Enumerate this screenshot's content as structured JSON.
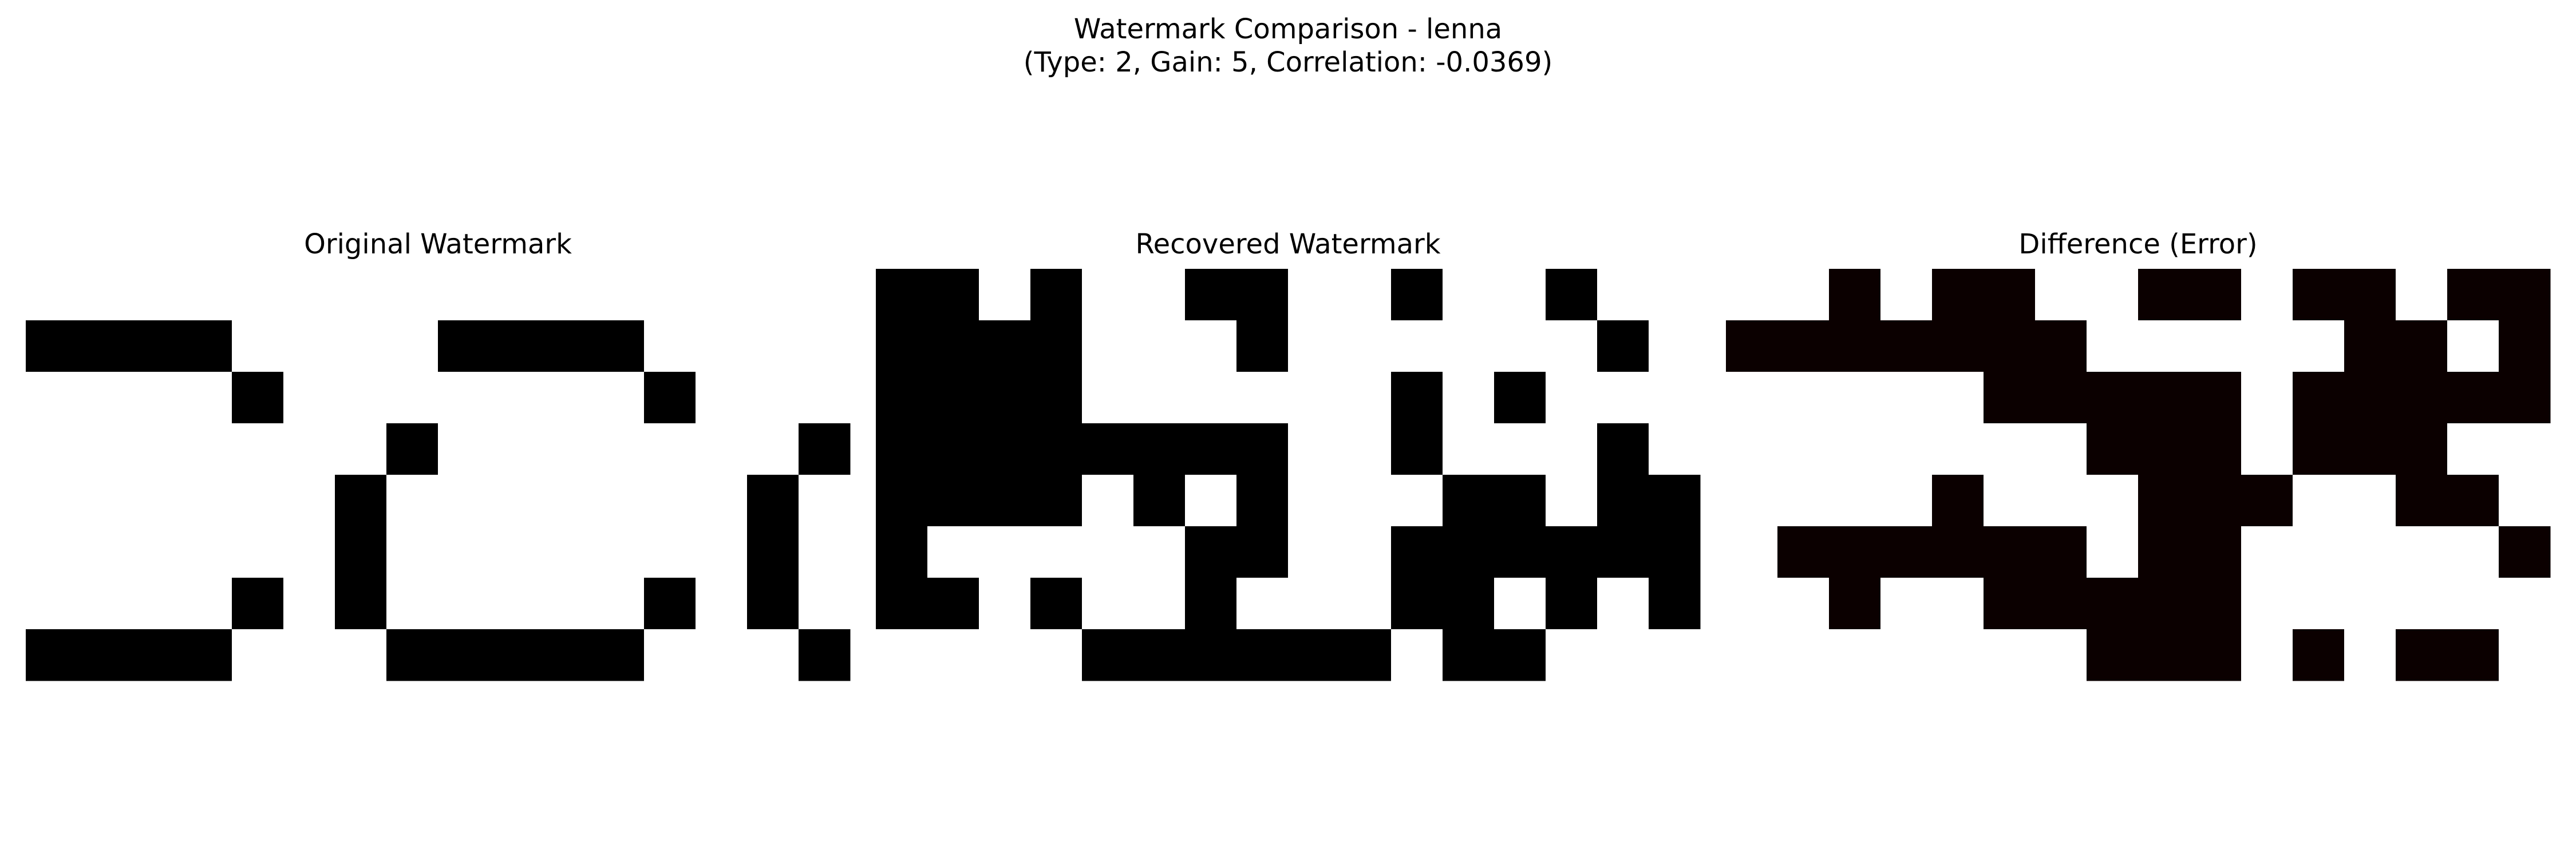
{
  "figure": {
    "title_line1": "Watermark Comparison - lenna",
    "title_line2": "(Type: 2, Gain: 5, Correlation: -0.0369)"
  },
  "chart_data": {
    "type": "heatmap",
    "grid": false,
    "panels": [
      {
        "title": "Original Watermark",
        "colormap": "gray",
        "rows": 8,
        "cols": 16,
        "values": [
          [
            0,
            0,
            0,
            0,
            0,
            0,
            0,
            0,
            0,
            0,
            0,
            0,
            0,
            0,
            0,
            0
          ],
          [
            1,
            1,
            1,
            1,
            0,
            0,
            0,
            0,
            1,
            1,
            1,
            1,
            0,
            0,
            0,
            0
          ],
          [
            0,
            0,
            0,
            0,
            1,
            0,
            0,
            0,
            0,
            0,
            0,
            0,
            1,
            0,
            0,
            0
          ],
          [
            0,
            0,
            0,
            0,
            0,
            0,
            0,
            1,
            0,
            0,
            0,
            0,
            0,
            0,
            0,
            1
          ],
          [
            0,
            0,
            0,
            0,
            0,
            0,
            1,
            0,
            0,
            0,
            0,
            0,
            0,
            0,
            1,
            0
          ],
          [
            0,
            0,
            0,
            0,
            0,
            0,
            1,
            0,
            0,
            0,
            0,
            0,
            0,
            0,
            1,
            0
          ],
          [
            0,
            0,
            0,
            0,
            1,
            0,
            1,
            0,
            0,
            0,
            0,
            0,
            1,
            0,
            1,
            0
          ],
          [
            1,
            1,
            1,
            1,
            0,
            0,
            0,
            1,
            1,
            1,
            1,
            1,
            0,
            0,
            0,
            1
          ]
        ]
      },
      {
        "title": "Recovered Watermark",
        "colormap": "gray",
        "rows": 8,
        "cols": 16,
        "values": [
          [
            1,
            1,
            0,
            1,
            0,
            0,
            1,
            1,
            0,
            0,
            1,
            0,
            0,
            1,
            0,
            0
          ],
          [
            1,
            1,
            1,
            1,
            0,
            0,
            0,
            1,
            0,
            0,
            0,
            0,
            0,
            0,
            1,
            0
          ],
          [
            1,
            1,
            1,
            1,
            0,
            0,
            0,
            0,
            0,
            0,
            1,
            0,
            1,
            0,
            0,
            0
          ],
          [
            1,
            1,
            1,
            1,
            1,
            1,
            1,
            1,
            0,
            0,
            1,
            0,
            0,
            0,
            1,
            0
          ],
          [
            1,
            1,
            1,
            1,
            0,
            1,
            0,
            1,
            0,
            0,
            0,
            1,
            1,
            0,
            1,
            1
          ],
          [
            1,
            0,
            0,
            0,
            0,
            0,
            1,
            1,
            0,
            0,
            1,
            1,
            1,
            1,
            1,
            1
          ],
          [
            1,
            1,
            0,
            1,
            0,
            0,
            1,
            0,
            0,
            0,
            1,
            1,
            0,
            1,
            0,
            1
          ],
          [
            0,
            0,
            0,
            0,
            1,
            1,
            1,
            1,
            1,
            1,
            0,
            1,
            1,
            0,
            0,
            0
          ]
        ]
      },
      {
        "title": "Difference (Error)",
        "colormap": "hot",
        "rows": 8,
        "cols": 16,
        "values": [
          [
            0,
            0,
            1,
            0,
            1,
            1,
            0,
            0,
            1,
            1,
            0,
            1,
            1,
            0,
            1,
            1
          ],
          [
            1,
            1,
            1,
            1,
            1,
            1,
            1,
            0,
            0,
            0,
            0,
            0,
            1,
            1,
            0,
            1
          ],
          [
            0,
            0,
            0,
            0,
            0,
            1,
            1,
            1,
            1,
            1,
            0,
            1,
            1,
            1,
            1,
            1
          ],
          [
            0,
            0,
            0,
            0,
            0,
            0,
            0,
            1,
            1,
            1,
            0,
            1,
            1,
            1,
            0,
            0
          ],
          [
            0,
            0,
            0,
            0,
            1,
            0,
            0,
            0,
            1,
            1,
            1,
            0,
            0,
            1,
            1,
            0
          ],
          [
            0,
            1,
            1,
            1,
            1,
            1,
            1,
            0,
            1,
            1,
            0,
            0,
            0,
            0,
            0,
            1
          ],
          [
            0,
            0,
            1,
            0,
            0,
            1,
            1,
            1,
            1,
            1,
            0,
            0,
            0,
            0,
            0,
            0
          ],
          [
            0,
            0,
            0,
            0,
            0,
            0,
            0,
            1,
            1,
            1,
            0,
            1,
            0,
            1,
            1,
            0
          ]
        ]
      }
    ],
    "colors": {
      "gray_on": "#000000",
      "gray_off": "#ffffff",
      "hot_on": "#0b0000",
      "hot_off": "#ffffff"
    }
  }
}
